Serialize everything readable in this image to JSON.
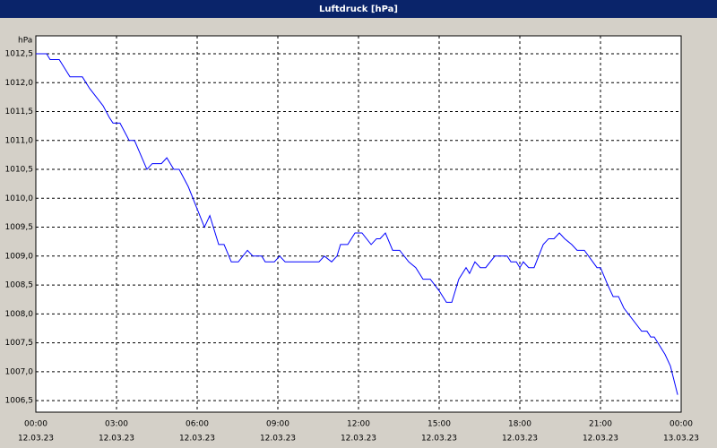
{
  "chart_data": {
    "type": "line",
    "title": "Luftdruck [hPa]",
    "y_label": "hPa",
    "x": [
      0,
      0.4,
      0.53,
      0.87,
      1.27,
      1.73,
      2.0,
      2.5,
      2.73,
      2.87,
      3.13,
      3.47,
      3.67,
      4.13,
      4.33,
      4.67,
      4.87,
      5.13,
      5.33,
      5.67,
      6.27,
      6.47,
      6.8,
      7.0,
      7.27,
      7.53,
      7.87,
      8.07,
      8.4,
      8.53,
      8.87,
      9.07,
      9.27,
      10.53,
      10.73,
      11.0,
      11.2,
      11.33,
      11.6,
      11.87,
      12.13,
      12.47,
      12.67,
      12.8,
      13.0,
      13.27,
      13.53,
      13.87,
      14.13,
      14.4,
      14.67,
      15.0,
      15.27,
      15.47,
      15.73,
      16.0,
      16.13,
      16.33,
      16.53,
      16.73,
      17.07,
      17.53,
      17.67,
      17.87,
      18.0,
      18.13,
      18.33,
      18.53,
      18.87,
      19.07,
      19.27,
      19.47,
      19.67,
      19.93,
      20.13,
      20.4,
      20.87,
      21.0,
      21.27,
      21.47,
      21.67,
      21.87,
      22.53,
      22.73,
      22.87,
      23.0,
      23.4,
      23.6,
      23.87
    ],
    "series": [
      {
        "name": "Luftdruck",
        "color": "#0000ff",
        "values": [
          1012.5,
          1012.5,
          1012.4,
          1012.4,
          1012.1,
          1012.1,
          1011.9,
          1011.6,
          1011.4,
          1011.3,
          1011.3,
          1011.0,
          1011.0,
          1010.5,
          1010.6,
          1010.6,
          1010.7,
          1010.5,
          1010.5,
          1010.2,
          1009.5,
          1009.7,
          1009.2,
          1009.2,
          1008.9,
          1008.9,
          1009.1,
          1009.0,
          1009.0,
          1008.9,
          1008.9,
          1009.0,
          1008.9,
          1008.9,
          1009.0,
          1008.9,
          1009.0,
          1009.2,
          1009.2,
          1009.4,
          1009.4,
          1009.2,
          1009.3,
          1009.3,
          1009.4,
          1009.1,
          1009.1,
          1008.9,
          1008.8,
          1008.6,
          1008.6,
          1008.4,
          1008.2,
          1008.2,
          1008.6,
          1008.8,
          1008.7,
          1008.9,
          1008.8,
          1008.8,
          1009.0,
          1009.0,
          1008.9,
          1008.9,
          1008.8,
          1008.9,
          1008.8,
          1008.8,
          1009.2,
          1009.3,
          1009.3,
          1009.4,
          1009.3,
          1009.2,
          1009.1,
          1009.1,
          1008.8,
          1008.8,
          1008.5,
          1008.3,
          1008.3,
          1008.1,
          1007.7,
          1007.7,
          1007.6,
          1007.6,
          1007.3,
          1007.1,
          1006.6
        ]
      }
    ],
    "xlim": [
      0,
      24
    ],
    "xticks": [
      {
        "value": 0,
        "label": "00:00",
        "date": "12.03.23"
      },
      {
        "value": 3,
        "label": "03:00",
        "date": "12.03.23"
      },
      {
        "value": 6,
        "label": "06:00",
        "date": "12.03.23"
      },
      {
        "value": 9,
        "label": "09:00",
        "date": "12.03.23"
      },
      {
        "value": 12,
        "label": "12:00",
        "date": "12.03.23"
      },
      {
        "value": 15,
        "label": "15:00",
        "date": "12.03.23"
      },
      {
        "value": 18,
        "label": "18:00",
        "date": "12.03.23"
      },
      {
        "value": 21,
        "label": "21:00",
        "date": "12.03.23"
      },
      {
        "value": 24,
        "label": "00:00",
        "date": "13.03.23"
      }
    ],
    "ylim": [
      1006.3,
      1012.81
    ],
    "yticks": [
      {
        "value": 1006.5,
        "label": "1006,5"
      },
      {
        "value": 1007,
        "label": "1007,0"
      },
      {
        "value": 1007.5,
        "label": "1007,5"
      },
      {
        "value": 1008,
        "label": "1008,0"
      },
      {
        "value": 1008.5,
        "label": "1008,5"
      },
      {
        "value": 1009,
        "label": "1009,0"
      },
      {
        "value": 1009.5,
        "label": "1009,5"
      },
      {
        "value": 1010,
        "label": "1010,0"
      },
      {
        "value": 1010.5,
        "label": "1010,5"
      },
      {
        "value": 1011,
        "label": "1011,0"
      },
      {
        "value": 1011.5,
        "label": "1011,5"
      },
      {
        "value": 1012,
        "label": "1012,0"
      },
      {
        "value": 1012.5,
        "label": "1012,5"
      }
    ],
    "grid": true
  }
}
